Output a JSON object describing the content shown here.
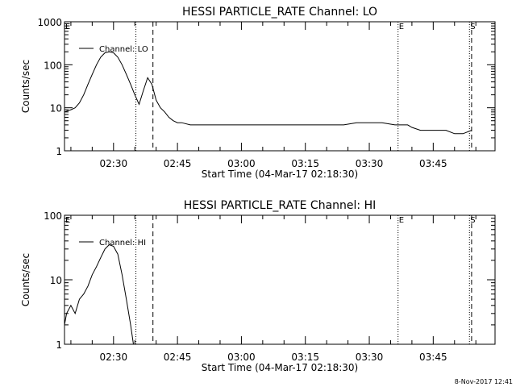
{
  "footer": {
    "timestamp": "8-Nov-2017 12:41"
  },
  "chart_data": [
    {
      "type": "line",
      "title": "HESSI PARTICLE_RATE Channel: LO",
      "xlabel": "Start Time (04-Mar-17 02:18:30)",
      "ylabel": "Counts/sec",
      "y_scale": "log",
      "ylim": [
        1,
        1000
      ],
      "xlim": [
        "02:18:30",
        "03:59:30"
      ],
      "x_ticks": [
        "02:30",
        "02:45",
        "03:00",
        "03:15",
        "03:30",
        "03:45"
      ],
      "y_ticks": [
        "1",
        "10",
        "100",
        "1000"
      ],
      "legend": {
        "placement": "top-left",
        "entries": [
          "Channel: LO"
        ]
      },
      "markers": [
        {
          "label": "E",
          "x": "02:18:30",
          "style": "none"
        },
        {
          "label": "",
          "x": "02:35:15",
          "style": "dotted"
        },
        {
          "label": "",
          "x": "02:39:15",
          "style": "dashed"
        },
        {
          "label": "E",
          "x": "03:36:45",
          "style": "dotted"
        },
        {
          "label": "S",
          "x": "03:53:30",
          "style": "dotted"
        },
        {
          "label": "",
          "x": "03:54:00",
          "style": "dashed"
        }
      ],
      "series": [
        {
          "name": "Channel: LO",
          "color": "#000000",
          "x": [
            "02:18:30",
            "02:20:00",
            "02:21:00",
            "02:22:00",
            "02:23:00",
            "02:24:00",
            "02:25:00",
            "02:26:00",
            "02:27:00",
            "02:28:00",
            "02:29:00",
            "02:30:00",
            "02:31:00",
            "02:32:00",
            "02:33:00",
            "02:34:00",
            "02:35:00",
            "02:36:00",
            "02:37:00",
            "02:38:00",
            "02:39:00",
            "02:40:00",
            "02:41:00",
            "02:42:00",
            "02:43:00",
            "02:44:00",
            "02:45:00",
            "02:46:00",
            "02:48:00",
            "02:50:00",
            "02:52:00",
            "02:54:00",
            "02:56:00",
            "02:58:00",
            "03:00:00",
            "03:03:00",
            "03:06:00",
            "03:09:00",
            "03:12:00",
            "03:15:00",
            "03:18:00",
            "03:21:00",
            "03:24:00",
            "03:27:00",
            "03:30:00",
            "03:33:00",
            "03:36:00",
            "03:39:00",
            "03:40:00",
            "03:42:00",
            "03:45:00",
            "03:48:00",
            "03:50:00",
            "03:52:00",
            "03:54:00"
          ],
          "y": [
            8,
            9,
            10,
            13,
            20,
            35,
            60,
            100,
            150,
            190,
            200,
            190,
            150,
            100,
            60,
            35,
            20,
            12,
            25,
            50,
            35,
            15,
            10,
            8,
            6,
            5,
            4.5,
            4.5,
            4,
            4,
            4,
            4,
            4,
            4,
            4,
            4,
            4,
            4,
            4,
            4,
            4,
            4,
            4,
            4.5,
            4.5,
            4.5,
            4,
            4,
            3.5,
            3,
            3,
            3,
            2.5,
            2.5,
            3
          ]
        }
      ]
    },
    {
      "type": "line",
      "title": "HESSI PARTICLE_RATE Channel: HI",
      "xlabel": "Start Time (04-Mar-17 02:18:30)",
      "ylabel": "Counts/sec",
      "y_scale": "log",
      "ylim": [
        1,
        100
      ],
      "xlim": [
        "02:18:30",
        "03:59:30"
      ],
      "x_ticks": [
        "02:30",
        "02:45",
        "03:00",
        "03:15",
        "03:30",
        "03:45"
      ],
      "y_ticks": [
        "1",
        "10",
        "100"
      ],
      "legend": {
        "placement": "top-left",
        "entries": [
          "Channel: HI"
        ]
      },
      "markers": [
        {
          "label": "E",
          "x": "02:18:30",
          "style": "none"
        },
        {
          "label": "",
          "x": "02:35:15",
          "style": "dotted"
        },
        {
          "label": "",
          "x": "02:39:15",
          "style": "dashed"
        },
        {
          "label": "E",
          "x": "03:36:45",
          "style": "dotted"
        },
        {
          "label": "S",
          "x": "03:53:30",
          "style": "dotted"
        },
        {
          "label": "",
          "x": "03:54:00",
          "style": "dashed"
        }
      ],
      "series": [
        {
          "name": "Channel: HI",
          "color": "#000000",
          "x": [
            "02:18:30",
            "02:19:00",
            "02:20:00",
            "02:21:00",
            "02:22:00",
            "02:23:00",
            "02:24:00",
            "02:25:00",
            "02:26:00",
            "02:27:00",
            "02:28:00",
            "02:29:00",
            "02:30:00",
            "02:31:00",
            "02:32:00",
            "02:33:00",
            "02:34:00",
            "02:34:40"
          ],
          "y": [
            2,
            3,
            4,
            3,
            5,
            6,
            8,
            12,
            16,
            22,
            30,
            35,
            33,
            25,
            12,
            5,
            2,
            1
          ]
        }
      ]
    }
  ]
}
